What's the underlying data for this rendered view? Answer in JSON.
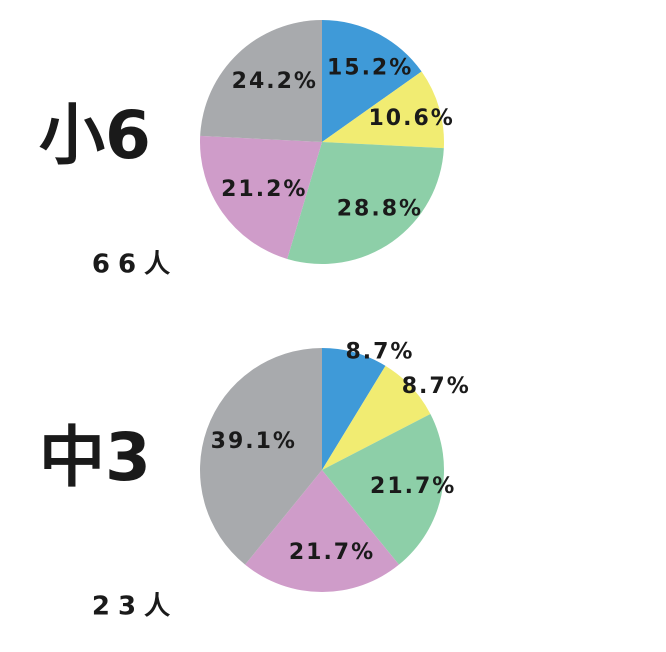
{
  "chart_data": [
    {
      "type": "pie",
      "title": "小6",
      "subtitle": "66人",
      "values": [
        15.2,
        10.6,
        28.8,
        21.2,
        24.2
      ],
      "value_labels": [
        "15.2%",
        "10.6%",
        "28.8%",
        "21.2%",
        "24.2%"
      ],
      "colors": [
        "#3f9ad8",
        "#f1ec72",
        "#8dcfa8",
        "#cf9cc9",
        "#a8aaad"
      ]
    },
    {
      "type": "pie",
      "title": "中3",
      "subtitle": "23人",
      "values": [
        8.7,
        8.7,
        21.7,
        21.7,
        39.1
      ],
      "value_labels": [
        "8.7%",
        "8.7%",
        "21.7%",
        "21.7%",
        "39.1%"
      ],
      "colors": [
        "#3f9ad8",
        "#f1ec72",
        "#8dcfa8",
        "#cf9cc9",
        "#a8aaad"
      ]
    }
  ]
}
